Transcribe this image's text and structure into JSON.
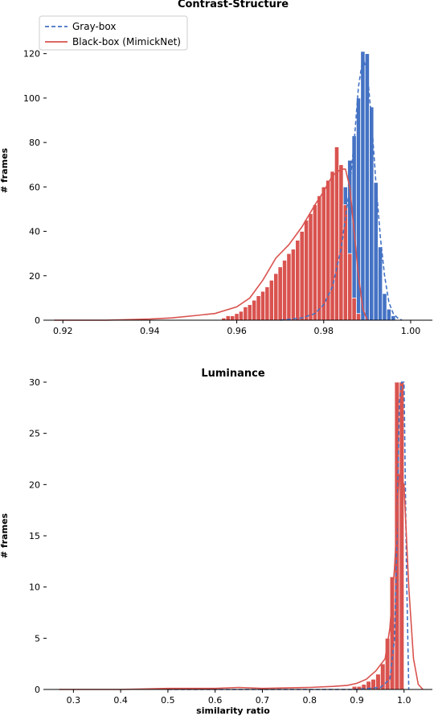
{
  "colors": {
    "gray_box": "#4472c4",
    "black_box": "#d9534f",
    "axis": "#000000"
  },
  "chart_data": [
    {
      "type": "histogram",
      "title": "Contrast-Structure",
      "xlabel": "",
      "ylabel": "# frames",
      "xlim": [
        0.917,
        1.005
      ],
      "ylim": [
        0,
        134
      ],
      "xticks": [
        0.92,
        0.94,
        0.96,
        0.98,
        1.0
      ],
      "xtick_labels": [
        "0.92",
        "0.94",
        "0.96",
        "0.98",
        "1.00"
      ],
      "yticks": [
        0,
        20,
        40,
        60,
        80,
        100,
        120
      ],
      "ytick_labels": [
        "0",
        "20",
        "40",
        "60",
        "80",
        "100",
        "120"
      ],
      "legend": {
        "position": "top-left",
        "entries": [
          "Gray-box",
          "Black-box (MimickNet)"
        ]
      },
      "series": [
        {
          "name": "Gray-box",
          "style": "dashed",
          "bins": [
            [
              0.9755,
              0.9765,
              1
            ],
            [
              0.9765,
              0.9775,
              2
            ],
            [
              0.9775,
              0.9785,
              4
            ],
            [
              0.9785,
              0.9795,
              7
            ],
            [
              0.9795,
              0.9805,
              12
            ],
            [
              0.9805,
              0.9815,
              18
            ],
            [
              0.9815,
              0.9825,
              26
            ],
            [
              0.9825,
              0.9835,
              35
            ],
            [
              0.9835,
              0.9845,
              48
            ],
            [
              0.9845,
              0.9855,
              60
            ],
            [
              0.9855,
              0.9865,
              72
            ],
            [
              0.9865,
              0.9875,
              83
            ],
            [
              0.9875,
              0.9885,
              100
            ],
            [
              0.9885,
              0.9895,
              121
            ],
            [
              0.9895,
              0.9905,
              120
            ],
            [
              0.9905,
              0.9915,
              96
            ],
            [
              0.9915,
              0.9925,
              62
            ],
            [
              0.9925,
              0.9935,
              33
            ],
            [
              0.9935,
              0.9945,
              12
            ],
            [
              0.9945,
              0.9955,
              5
            ],
            [
              0.9955,
              0.9965,
              2
            ]
          ],
          "curve_x": [
            0.97,
            0.975,
            0.978,
            0.98,
            0.982,
            0.984,
            0.986,
            0.987,
            0.988,
            0.989,
            0.99,
            0.991,
            0.992,
            0.993,
            0.994,
            0.995,
            0.996,
            0.997,
            0.998
          ],
          "curve_y": [
            0,
            1,
            3,
            7,
            15,
            32,
            60,
            80,
            105,
            118,
            112,
            90,
            62,
            38,
            20,
            8,
            3,
            1,
            0
          ]
        },
        {
          "name": "Black-box (MimickNet)",
          "style": "solid",
          "bins": [
            [
              0.9565,
              0.9575,
              1
            ],
            [
              0.9575,
              0.9585,
              2
            ],
            [
              0.9585,
              0.9595,
              2
            ],
            [
              0.9595,
              0.9605,
              3
            ],
            [
              0.9605,
              0.9615,
              4
            ],
            [
              0.9615,
              0.9625,
              6
            ],
            [
              0.9625,
              0.9635,
              7
            ],
            [
              0.9635,
              0.9645,
              9
            ],
            [
              0.9645,
              0.9655,
              11
            ],
            [
              0.9655,
              0.9665,
              13
            ],
            [
              0.9665,
              0.9675,
              15
            ],
            [
              0.9675,
              0.9685,
              18
            ],
            [
              0.9685,
              0.9695,
              21
            ],
            [
              0.9695,
              0.9705,
              24
            ],
            [
              0.9705,
              0.9715,
              27
            ],
            [
              0.9715,
              0.9725,
              30
            ],
            [
              0.9725,
              0.9735,
              32
            ],
            [
              0.9735,
              0.9745,
              36
            ],
            [
              0.9745,
              0.9755,
              40
            ],
            [
              0.9755,
              0.9765,
              45
            ],
            [
              0.9765,
              0.9775,
              48
            ],
            [
              0.9775,
              0.9785,
              52
            ],
            [
              0.9785,
              0.9795,
              56
            ],
            [
              0.9795,
              0.9805,
              60
            ],
            [
              0.9805,
              0.9815,
              63
            ],
            [
              0.9815,
              0.9825,
              67
            ],
            [
              0.9825,
              0.9835,
              78
            ],
            [
              0.9835,
              0.9845,
              70
            ],
            [
              0.9845,
              0.9855,
              52
            ],
            [
              0.9855,
              0.9865,
              30
            ],
            [
              0.9865,
              0.9875,
              10
            ],
            [
              0.9875,
              0.9885,
              3
            ]
          ],
          "curve_x": [
            0.918,
            0.93,
            0.94,
            0.945,
            0.95,
            0.955,
            0.96,
            0.963,
            0.966,
            0.969,
            0.972,
            0.975,
            0.978,
            0.98,
            0.982,
            0.984,
            0.985,
            0.986,
            0.987,
            0.988,
            0.989,
            0.99
          ],
          "curve_y": [
            0,
            0,
            0.5,
            1,
            2,
            3,
            6,
            10,
            18,
            28,
            34,
            42,
            52,
            58,
            65,
            68,
            68,
            60,
            40,
            20,
            5,
            0
          ]
        }
      ]
    },
    {
      "type": "histogram",
      "title": "Luminance",
      "xlabel": "similarity ratio",
      "ylabel": "# frames",
      "xlim": [
        0.25,
        1.06
      ],
      "ylim": [
        0,
        30
      ],
      "xticks": [
        0.3,
        0.4,
        0.5,
        0.6,
        0.7,
        0.8,
        0.9,
        1.0
      ],
      "xtick_labels": [
        "0.3",
        "0.4",
        "0.5",
        "0.6",
        "0.7",
        "0.8",
        "0.9",
        "1.0"
      ],
      "yticks": [
        0,
        5,
        10,
        15,
        20,
        25,
        30
      ],
      "ytick_labels": [
        "0",
        "5",
        "10",
        "15",
        "20",
        "25",
        "30"
      ],
      "series": [
        {
          "name": "Gray-box",
          "style": "dashed",
          "bins": [
            [
              0.96,
              0.97,
              0.3
            ],
            [
              0.97,
              0.98,
              2
            ],
            [
              0.98,
              0.99,
              8
            ],
            [
              0.99,
              1.0,
              30
            ]
          ],
          "curve_x": [
            0.5,
            0.9,
            0.95,
            0.97,
            0.98,
            0.985,
            0.99,
            0.995,
            1.0,
            1.005,
            1.01
          ],
          "curve_y": [
            0,
            0,
            0.2,
            1,
            5,
            15,
            28,
            30,
            30,
            12,
            0
          ]
        },
        {
          "name": "Black-box (MimickNet)",
          "style": "solid",
          "bins": [
            [
              0.89,
              0.9,
              0.3
            ],
            [
              0.9,
              0.91,
              0.3
            ],
            [
              0.91,
              0.92,
              0.5
            ],
            [
              0.92,
              0.93,
              0.8
            ],
            [
              0.93,
              0.94,
              1.0
            ],
            [
              0.94,
              0.95,
              1.5
            ],
            [
              0.95,
              0.96,
              2.5
            ],
            [
              0.96,
              0.97,
              5
            ],
            [
              0.97,
              0.98,
              11
            ],
            [
              0.98,
              0.99,
              30
            ],
            [
              0.99,
              1.0,
              30
            ]
          ],
          "curve_x": [
            0.27,
            0.4,
            0.5,
            0.6,
            0.65,
            0.7,
            0.8,
            0.85,
            0.88,
            0.9,
            0.92,
            0.94,
            0.96,
            0.97,
            0.98,
            0.99,
            1.0,
            1.01,
            1.02,
            1.03,
            1.04
          ],
          "curve_y": [
            0,
            0,
            0.1,
            0.1,
            0.2,
            0.1,
            0.2,
            0.3,
            0.4,
            0.6,
            1,
            1.8,
            3,
            6,
            12,
            21,
            20,
            10,
            3,
            0.5,
            0
          ]
        }
      ]
    }
  ]
}
